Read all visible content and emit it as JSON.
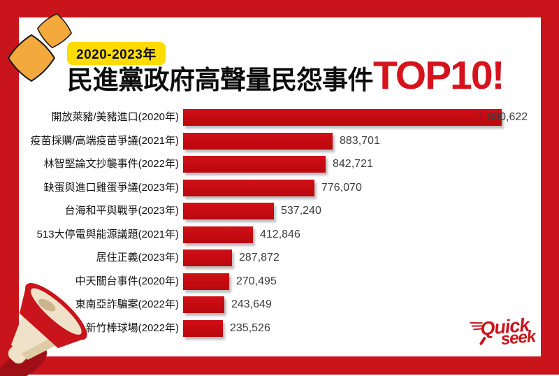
{
  "header": {
    "badge": "2020-2023年",
    "title": "民進黨政府高聲量民怨事件",
    "title_highlight": "TOP10!"
  },
  "chart_data": {
    "type": "bar",
    "orientation": "horizontal",
    "title": "2020-2023年 民進黨政府高聲量民怨事件 TOP10!",
    "categories": [
      "開放萊豬/美豬進口(2020年)",
      "疫苗採購/高端疫苗爭議(2021年)",
      "林智堅論文抄襲事件(2022年)",
      "缺蛋與進口雞蛋爭議(2023年)",
      "台海和平與戰爭(2023年)",
      "513大停電與能源議題(2021年)",
      "居住正義(2023年)",
      "中天關台事件(2020年)",
      "東南亞詐騙案(2022年)",
      "新竹棒球場(2022年)"
    ],
    "values": [
      1880622,
      883701,
      842721,
      776070,
      537240,
      412846,
      287872,
      270495,
      243649,
      235526
    ],
    "value_labels": [
      "1,880,622",
      "883,701",
      "842,721",
      "776,070",
      "537,240",
      "412,846",
      "287,872",
      "270,495",
      "243,649",
      "235,526"
    ],
    "xlabel": "",
    "ylabel": "",
    "xlim": [
      0,
      1880622
    ],
    "grid": false,
    "legend": false,
    "bar_color": "#C20A10"
  },
  "branding": {
    "logo_line1": "Quick",
    "logo_line2": "seek"
  },
  "colors": {
    "brand_red": "#C9141B",
    "highlight_red": "#D6131C",
    "badge_yellow": "#FFDC00",
    "sparkle_orange": "#F4A93C",
    "value_text": "#3C3C3C"
  }
}
